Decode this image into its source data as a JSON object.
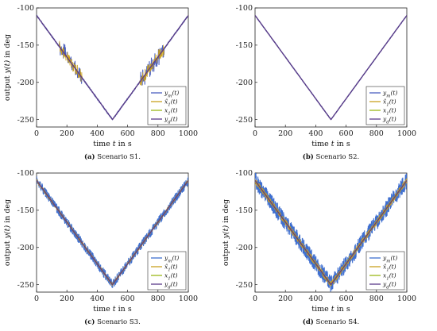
{
  "figure": {
    "chart_data": [
      {
        "type": "line",
        "caption_label": "(a)",
        "caption_text": "Scenario S1.",
        "xlabel": "time t in s",
        "ylabel": "output y(t) in deg",
        "xlim": [
          0,
          1000
        ],
        "ylim": [
          -260,
          -100
        ],
        "xticks": [
          0,
          200,
          400,
          600,
          800,
          1000
        ],
        "yticks": [
          -100,
          -150,
          -200,
          -250
        ],
        "grid": false,
        "legend_position": "bottom-right",
        "noise_amplitude": 1,
        "spikes": [
          {
            "t_start": 150,
            "t_end": 300,
            "amplitude": 12
          },
          {
            "t_start": 680,
            "t_end": 840,
            "amplitude": 12
          }
        ],
        "series": [
          {
            "name": "y_m(t)",
            "legend": "ym(t)",
            "color": "#4a5fc0",
            "x": [
              0,
              500,
              1000
            ],
            "y": [
              -110,
              -250,
              -110
            ]
          },
          {
            "name": "x̂1(t)",
            "legend": "x̂1(t)",
            "color": "#c8a020",
            "x": [
              0,
              500,
              1000
            ],
            "y": [
              -110,
              -250,
              -110
            ]
          },
          {
            "name": "x1(t)",
            "legend": "x1(t)",
            "color": "#9ab818",
            "x": [
              0,
              500,
              1000
            ],
            "y": [
              -110,
              -250,
              -110
            ]
          },
          {
            "name": "y_d(t)",
            "legend": "yd(t)",
            "color": "#5a3a8a",
            "x": [
              0,
              500,
              1000
            ],
            "y": [
              -110,
              -250,
              -110
            ]
          }
        ]
      },
      {
        "type": "line",
        "caption_label": "(b)",
        "caption_text": "Scenario S2.",
        "xlabel": "time t in s",
        "ylabel": "",
        "xlim": [
          0,
          1000
        ],
        "ylim": [
          -260,
          -100
        ],
        "xticks": [
          0,
          200,
          400,
          600,
          800,
          1000
        ],
        "yticks": [
          -100,
          -150,
          -200,
          -250
        ],
        "grid": false,
        "legend_position": "bottom-right",
        "noise_amplitude": 0.6,
        "spikes": [],
        "series": [
          {
            "name": "y_m(t)",
            "legend": "ym(t)",
            "color": "#4a5fc0",
            "x": [
              0,
              500,
              1000
            ],
            "y": [
              -110,
              -250,
              -110
            ]
          },
          {
            "name": "x̂1(t)",
            "legend": "x̂1(t)",
            "color": "#c8a020",
            "x": [
              0,
              500,
              1000
            ],
            "y": [
              -110,
              -250,
              -110
            ]
          },
          {
            "name": "x1(t)",
            "legend": "x1(t)",
            "color": "#9ab818",
            "x": [
              0,
              500,
              1000
            ],
            "y": [
              -110,
              -250,
              -110
            ]
          },
          {
            "name": "y_d(t)",
            "legend": "yd(t)",
            "color": "#5a3a8a",
            "x": [
              0,
              500,
              1000
            ],
            "y": [
              -110,
              -250,
              -110
            ]
          }
        ]
      },
      {
        "type": "line",
        "caption_label": "(c)",
        "caption_text": "Scenario S3.",
        "xlabel": "time t in s",
        "ylabel": "output y(t) in deg",
        "xlim": [
          0,
          1000
        ],
        "ylim": [
          -260,
          -100
        ],
        "xticks": [
          0,
          200,
          400,
          600,
          800,
          1000
        ],
        "yticks": [
          -100,
          -150,
          -200,
          -250
        ],
        "grid": false,
        "legend_position": "bottom-right",
        "noise_amplitude": 6,
        "spikes": [],
        "series": [
          {
            "name": "y_m(t)",
            "legend": "ym(t)",
            "color": "#3f6fd0",
            "x": [
              0,
              500,
              1000
            ],
            "y": [
              -110,
              -250,
              -110
            ]
          },
          {
            "name": "x̂1(t)",
            "legend": "x̂1(t)",
            "color": "#c8a020",
            "x": [
              0,
              500,
              1000
            ],
            "y": [
              -110,
              -250,
              -110
            ]
          },
          {
            "name": "x1(t)",
            "legend": "x1(t)",
            "color": "#9ab818",
            "x": [
              0,
              500,
              1000
            ],
            "y": [
              -110,
              -250,
              -110
            ]
          },
          {
            "name": "y_d(t)",
            "legend": "yd(t)",
            "color": "#5a3a8a",
            "x": [
              0,
              500,
              1000
            ],
            "y": [
              -110,
              -250,
              -110
            ]
          }
        ]
      },
      {
        "type": "line",
        "caption_label": "(d)",
        "caption_text": "Scenario S4.",
        "xlabel": "time t in s",
        "ylabel": "output y(t) in deg",
        "xlim": [
          0,
          1000
        ],
        "ylim": [
          -260,
          -100
        ],
        "xticks": [
          0,
          200,
          400,
          600,
          800,
          1000
        ],
        "yticks": [
          -100,
          -150,
          -200,
          -250
        ],
        "grid": false,
        "legend_position": "bottom-right",
        "noise_amplitude": 11,
        "spikes": [],
        "series": [
          {
            "name": "y_m(t)",
            "legend": "ym(t)",
            "color": "#3f6fd0",
            "x": [
              0,
              500,
              1000
            ],
            "y": [
              -110,
              -250,
              -110
            ]
          },
          {
            "name": "x̂1(t)",
            "legend": "x̂1(t)",
            "color": "#c8a020",
            "x": [
              0,
              500,
              1000
            ],
            "y": [
              -110,
              -250,
              -110
            ]
          },
          {
            "name": "x1(t)",
            "legend": "x1(t)",
            "color": "#9ab818",
            "x": [
              0,
              500,
              1000
            ],
            "y": [
              -110,
              -250,
              -110
            ]
          },
          {
            "name": "y_d(t)",
            "legend": "yd(t)",
            "color": "#5a3a8a",
            "x": [
              0,
              500,
              1000
            ],
            "y": [
              -110,
              -250,
              -110
            ]
          }
        ]
      }
    ]
  }
}
